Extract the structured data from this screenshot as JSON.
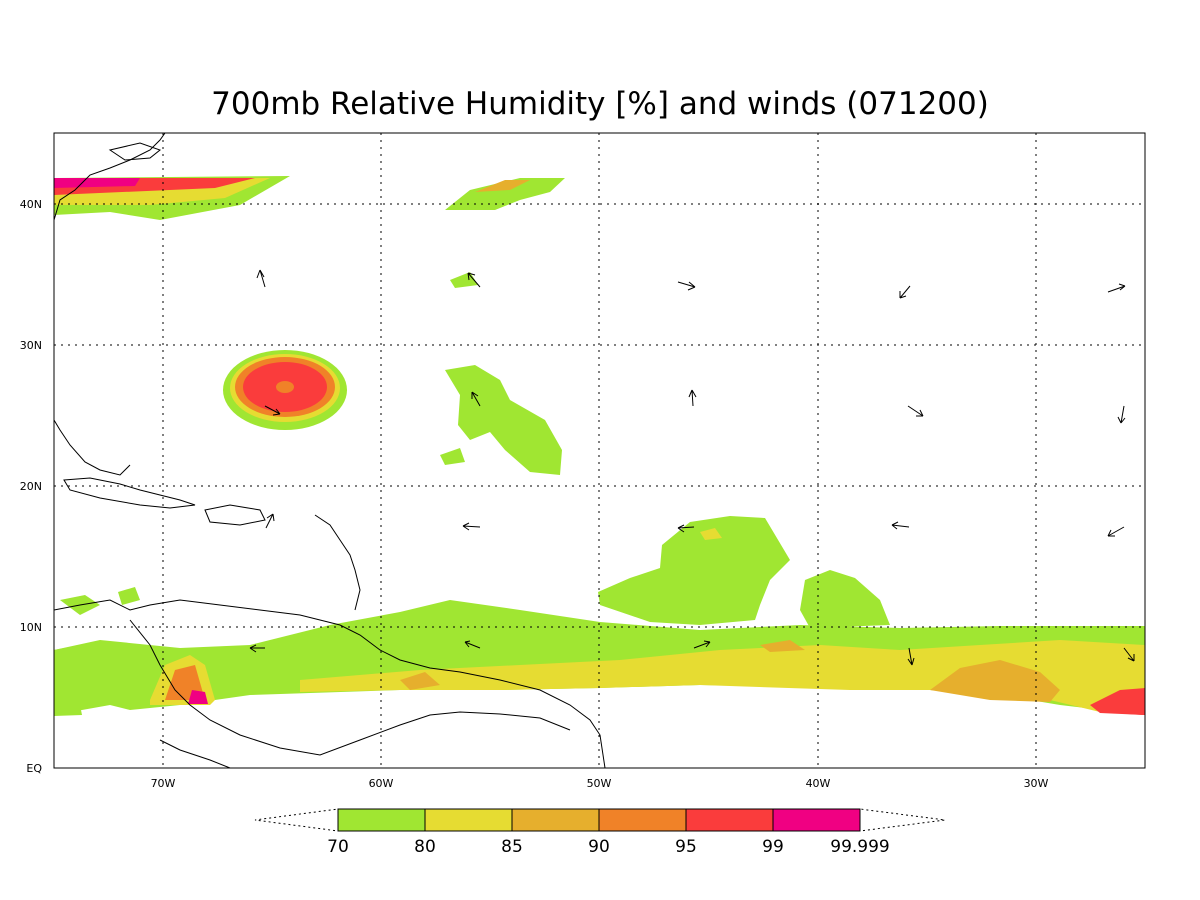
{
  "title": "700mb Relative Humidity [%] and winds (071200)",
  "map": {
    "lon_range": [
      -75,
      -25
    ],
    "lat_range": [
      0,
      45
    ],
    "lat_ticks": [
      {
        "lat": 40,
        "label": "40N"
      },
      {
        "lat": 30,
        "label": "30N"
      },
      {
        "lat": 20,
        "label": "20N"
      },
      {
        "lat": 10,
        "label": "10N"
      },
      {
        "lat": 0,
        "label": "EQ"
      }
    ],
    "lon_ticks": [
      {
        "lon": -70,
        "label": "70W"
      },
      {
        "lon": -60,
        "label": "60W"
      },
      {
        "lon": -50,
        "label": "50W"
      },
      {
        "lon": -40,
        "label": "40W"
      },
      {
        "lon": -30,
        "label": "30W"
      }
    ],
    "grid": "dotted"
  },
  "colorbar": {
    "levels": [
      "70",
      "80",
      "85",
      "90",
      "95",
      "99",
      "99.999"
    ],
    "colors": [
      "#a0e632",
      "#e6dc32",
      "#e6af2d",
      "#f08228",
      "#fa3c3c",
      "#f00082"
    ]
  }
}
